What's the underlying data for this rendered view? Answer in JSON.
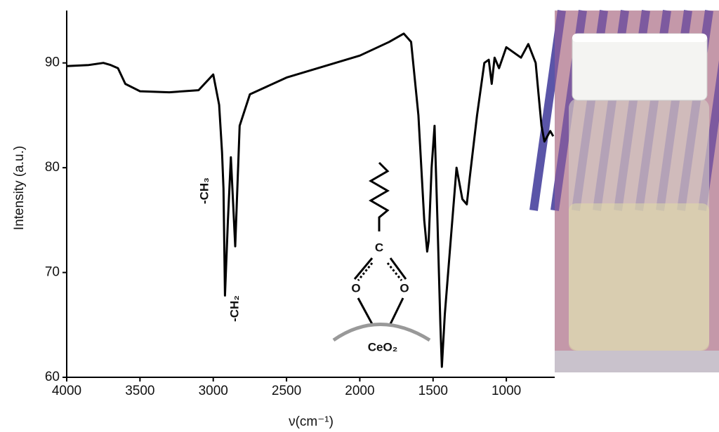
{
  "chart_data": {
    "type": "line",
    "x_label": "ν(cm⁻¹)",
    "y_label": "Intensity (a.u.)",
    "xlim": [
      4000,
      670
    ],
    "ylim": [
      60,
      95
    ],
    "xticks": [
      4000,
      3500,
      3000,
      2500,
      2000,
      1500,
      1000
    ],
    "yticks": [
      60,
      70,
      80,
      90
    ],
    "annotations": [
      "-CH₃",
      "-CH₂",
      "C",
      "O",
      "O",
      "CeO₂"
    ],
    "series": [
      {
        "color": "#000000",
        "x": [
          4000,
          3850,
          3750,
          3700,
          3650,
          3600,
          3500,
          3300,
          3100,
          3000,
          2960,
          2940,
          2930,
          2920,
          2900,
          2880,
          2850,
          2820,
          2750,
          2500,
          2000,
          1800,
          1700,
          1650,
          1600,
          1560,
          1540,
          1530,
          1510,
          1490,
          1470,
          1450,
          1440,
          1420,
          1380,
          1340,
          1300,
          1270,
          1250,
          1200,
          1150,
          1120,
          1100,
          1080,
          1050,
          1000,
          950,
          900,
          850,
          800,
          780,
          760,
          740,
          700,
          680
        ],
        "values": [
          89.7,
          89.8,
          90,
          89.8,
          89.5,
          88,
          87.3,
          87.2,
          87.4,
          88.9,
          86,
          81.5,
          78,
          67.8,
          75,
          81,
          72.5,
          84,
          87,
          88.6,
          90.7,
          92,
          92.8,
          92,
          85,
          75,
          72,
          73,
          80,
          84,
          75,
          65,
          61,
          66,
          73,
          80,
          77,
          76.5,
          79,
          85,
          90,
          90.3,
          88,
          90.5,
          89.5,
          91.5,
          91,
          90.5,
          91.8,
          90,
          87,
          84,
          82.5,
          83.5,
          83
        ]
      }
    ]
  }
}
